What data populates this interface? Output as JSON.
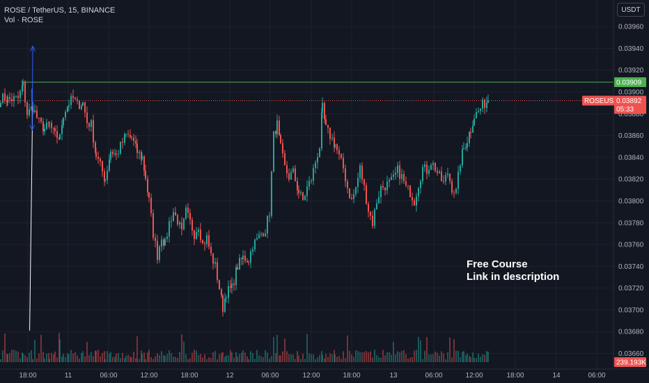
{
  "legend": {
    "symbol_line": "ROSE / TetherUS, 15, BINANCE",
    "volume_line": "Vol · ROSE"
  },
  "currency_button": "USDT",
  "annotation": {
    "line1": "Free Course",
    "line2": "Link in description"
  },
  "colors": {
    "background": "#131722",
    "up": "#26a69a",
    "down": "#ef5350",
    "resistance": "#4caf50",
    "trendline": "#ffffff",
    "projection": "#2962ff"
  },
  "chart_data": {
    "type": "candlestick",
    "title": "ROSE / TetherUS, 15, BINANCE",
    "y_ticks": [
      "0.03960",
      "0.03940",
      "0.03920",
      "0.03900",
      "0.03880",
      "0.03860",
      "0.03840",
      "0.03820",
      "0.03800",
      "0.03780",
      "0.03760",
      "0.03740",
      "0.03720",
      "0.03700",
      "0.03680",
      "0.03660"
    ],
    "ylim": [
      0.03652,
      0.03978
    ],
    "x_ticks": [
      "18:00",
      "11",
      "06:00",
      "12:00",
      "18:00",
      "12",
      "06:00",
      "12:00",
      "18:00",
      "13",
      "06:00",
      "12:00",
      "18:00",
      "14",
      "06:00"
    ],
    "resistance": {
      "price": 0.03909,
      "label": "0.03909"
    },
    "last_price": {
      "price": 0.03892,
      "symbol": "ROSEUSDT",
      "label": "0.03892",
      "countdown": "05:33"
    },
    "volume_label": "239.193K",
    "trendline": [
      [
        0.0416,
        0.03681
      ],
      [
        0.0577,
        0.03891
      ]
    ],
    "projection": [
      [
        0.0525,
        0.03903
      ],
      [
        0.0552,
        0.03865
      ],
      [
        0.0583,
        0.03942
      ]
    ],
    "waypoints": [
      [
        0,
        0.03895
      ],
      [
        10,
        0.03893
      ],
      [
        25,
        0.03894
      ],
      [
        32,
        0.03906
      ],
      [
        38,
        0.0388
      ],
      [
        46,
        0.03886
      ],
      [
        55,
        0.03872
      ],
      [
        63,
        0.03866
      ],
      [
        70,
        0.0387
      ],
      [
        78,
        0.0386
      ],
      [
        85,
        0.03858
      ],
      [
        90,
        0.0388
      ],
      [
        98,
        0.0389
      ],
      [
        104,
        0.03894
      ],
      [
        110,
        0.03888
      ],
      [
        118,
        0.0389
      ],
      [
        124,
        0.03872
      ],
      [
        130,
        0.0387
      ],
      [
        137,
        0.03842
      ],
      [
        143,
        0.03832
      ],
      [
        150,
        0.0382
      ],
      [
        158,
        0.03846
      ],
      [
        166,
        0.03842
      ],
      [
        172,
        0.0385
      ],
      [
        180,
        0.0386
      ],
      [
        188,
        0.03858
      ],
      [
        196,
        0.03845
      ],
      [
        203,
        0.0384
      ],
      [
        208,
        0.03822
      ],
      [
        213,
        0.038
      ],
      [
        219,
        0.0377
      ],
      [
        225,
        0.0375
      ],
      [
        231,
        0.03768
      ],
      [
        236,
        0.0376
      ],
      [
        242,
        0.0378
      ],
      [
        248,
        0.0379
      ],
      [
        254,
        0.03782
      ],
      [
        260,
        0.0377
      ],
      [
        266,
        0.0379
      ],
      [
        272,
        0.0378
      ],
      [
        278,
        0.0377
      ],
      [
        284,
        0.03778
      ],
      [
        290,
        0.0376
      ],
      [
        296,
        0.03766
      ],
      [
        302,
        0.0375
      ],
      [
        308,
        0.0374
      ],
      [
        314,
        0.0372
      ],
      [
        319,
        0.03702
      ],
      [
        324,
        0.03716
      ],
      [
        332,
        0.0372
      ],
      [
        340,
        0.0374
      ],
      [
        348,
        0.03748
      ],
      [
        356,
        0.03746
      ],
      [
        362,
        0.0376
      ],
      [
        368,
        0.03764
      ],
      [
        374,
        0.0377
      ],
      [
        380,
        0.03774
      ],
      [
        386,
        0.0379
      ],
      [
        392,
        0.0386
      ],
      [
        397,
        0.0387
      ],
      [
        402,
        0.03848
      ],
      [
        408,
        0.0383
      ],
      [
        414,
        0.03822
      ],
      [
        420,
        0.03826
      ],
      [
        428,
        0.03808
      ],
      [
        434,
        0.038
      ],
      [
        440,
        0.03812
      ],
      [
        446,
        0.0382
      ],
      [
        452,
        0.03836
      ],
      [
        458,
        0.0385
      ],
      [
        462,
        0.03885
      ],
      [
        467,
        0.03866
      ],
      [
        473,
        0.0386
      ],
      [
        480,
        0.03852
      ],
      [
        486,
        0.0384
      ],
      [
        492,
        0.0383
      ],
      [
        498,
        0.03812
      ],
      [
        504,
        0.038
      ],
      [
        510,
        0.03812
      ],
      [
        516,
        0.0383
      ],
      [
        522,
        0.03812
      ],
      [
        528,
        0.03792
      ],
      [
        534,
        0.0378
      ],
      [
        540,
        0.038
      ],
      [
        546,
        0.03812
      ],
      [
        552,
        0.03814
      ],
      [
        558,
        0.03816
      ],
      [
        564,
        0.0382
      ],
      [
        570,
        0.03828
      ],
      [
        576,
        0.03822
      ],
      [
        582,
        0.03812
      ],
      [
        588,
        0.03808
      ],
      [
        594,
        0.038
      ],
      [
        600,
        0.03816
      ],
      [
        606,
        0.0383
      ],
      [
        612,
        0.03828
      ],
      [
        618,
        0.03836
      ],
      [
        624,
        0.0383
      ],
      [
        630,
        0.03822
      ],
      [
        636,
        0.03816
      ],
      [
        642,
        0.03826
      ],
      [
        648,
        0.03812
      ],
      [
        654,
        0.03808
      ],
      [
        660,
        0.03836
      ],
      [
        665,
        0.03848
      ],
      [
        670,
        0.03856
      ],
      [
        675,
        0.03866
      ],
      [
        680,
        0.03878
      ],
      [
        686,
        0.03882
      ],
      [
        692,
        0.03888
      ],
      [
        700,
        0.03892
      ]
    ]
  }
}
